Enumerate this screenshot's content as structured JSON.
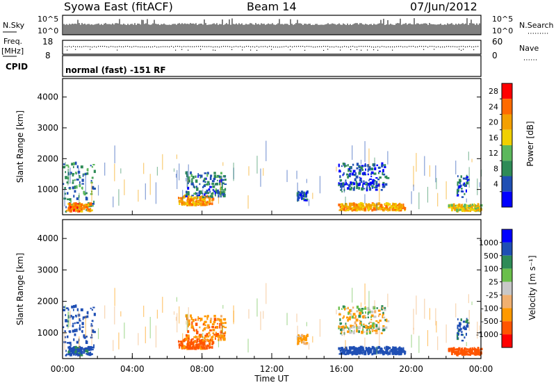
{
  "header": {
    "station": "Syowa East (fitACF)",
    "beam": "Beam 14",
    "date": "07/Jun/2012"
  },
  "panels": {
    "nsky": {
      "left_label": "N.Sky",
      "right_label": "N.Search",
      "ticks_left": [
        "10^5",
        "10^0"
      ],
      "ticks_right": [
        "10^5",
        "10^0"
      ]
    },
    "freq": {
      "left_label_1": "Freq.",
      "left_label_2": "[MHz]",
      "right_label": "Nave",
      "ticks_left": [
        "18",
        "8"
      ],
      "ticks_right": [
        "60",
        "0"
      ]
    },
    "cpid": {
      "label": "CPID",
      "mode": "normal (fast) -151 RF"
    },
    "power": {
      "ylabel": "Slant Range [km]",
      "yticks": [
        "4000",
        "3000",
        "2000",
        "1000"
      ],
      "cbar_label": "Power [dB]",
      "cbar_ticks": [
        "28",
        "24",
        "20",
        "16",
        "12",
        "8",
        "4"
      ]
    },
    "velocity": {
      "ylabel": "Slant Range [km]",
      "yticks": [
        "4000",
        "3000",
        "2000",
        "1000"
      ],
      "cbar_label": "Velocity [m s⁻¹]",
      "cbar_ticks": [
        "1000",
        "500",
        "100",
        "25",
        "-25",
        "-100",
        "-500",
        "-1000"
      ]
    },
    "xaxis": {
      "xlabel": "Time UT",
      "ticks": [
        "00:00",
        "04:00",
        "08:00",
        "12:00",
        "16:00",
        "20:00",
        "00:00"
      ]
    }
  },
  "chart_data": {
    "type": "heatmap",
    "x_axis": {
      "label": "Time UT",
      "range_hours": [
        0,
        24
      ]
    },
    "y_axis": {
      "label": "Slant Range [km]",
      "range_km": [
        180,
        4600
      ]
    },
    "power_colorbar": {
      "label": "Power [dB]",
      "range_db": [
        0,
        32
      ],
      "colors": [
        "#0000ff",
        "#1f4fb4",
        "#2e8b57",
        "#5cb85c",
        "#f0d000",
        "#f4a000",
        "#ff6a00",
        "#ff0000"
      ]
    },
    "velocity_colorbar": {
      "label": "Velocity [m s⁻¹]",
      "colors": [
        "#ff0000",
        "#ff5500",
        "#ff9900",
        "#f0b070",
        "#c8c8c8",
        "#6abf4b",
        "#2e8b57",
        "#1f4fb4",
        "#0000ff"
      ]
    },
    "echo_regions": [
      {
        "t0": 0.0,
        "t1": 1.8,
        "r0": 250,
        "r1": 1800,
        "power": 10,
        "vel": 300
      },
      {
        "t0": 0.2,
        "t1": 1.6,
        "r0": 250,
        "r1": 500,
        "power": 24,
        "vel": 150
      },
      {
        "t0": 6.6,
        "t1": 8.6,
        "r0": 450,
        "r1": 750,
        "power": 22,
        "vel": -150
      },
      {
        "t0": 7.0,
        "t1": 9.3,
        "r0": 700,
        "r1": 1500,
        "power": 8,
        "vel": -80
      },
      {
        "t0": 13.4,
        "t1": 14.0,
        "r0": 600,
        "r1": 900,
        "power": 6,
        "vel": -40
      },
      {
        "t0": 15.8,
        "t1": 19.6,
        "r0": 280,
        "r1": 500,
        "power": 22,
        "vel": 200
      },
      {
        "t0": 15.8,
        "t1": 18.6,
        "r0": 900,
        "r1": 1800,
        "power": 6,
        "vel": -10
      },
      {
        "t0": 22.1,
        "t1": 24.0,
        "r0": 250,
        "r1": 450,
        "power": 18,
        "vel": -300
      },
      {
        "t0": 22.6,
        "t1": 23.2,
        "r0": 700,
        "r1": 1400,
        "power": 6,
        "vel": 150
      }
    ]
  }
}
